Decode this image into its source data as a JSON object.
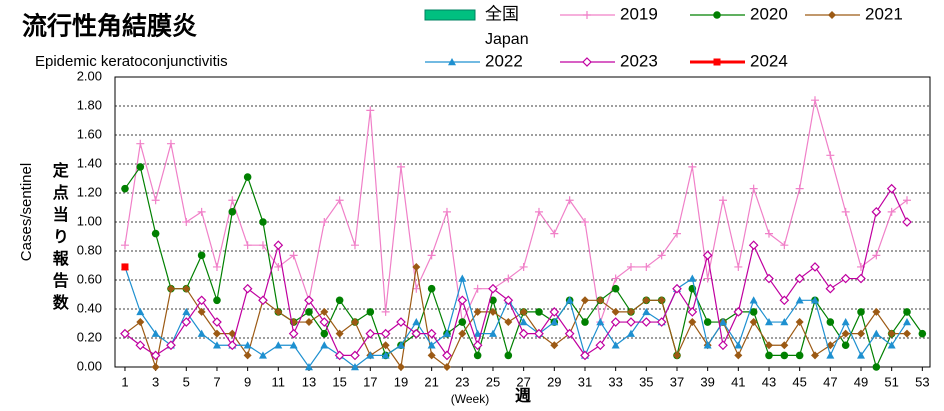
{
  "chart_data": {
    "type": "line",
    "title": "流行性角結膜炎",
    "subtitle": "Epidemic keratoconjunctivitis",
    "ylabel": "Cases/sentinel",
    "ylabel_ja": "定点当り報告数",
    "xlabel": "(Week)",
    "xlabel_ja": "週",
    "x": [
      1,
      2,
      3,
      4,
      5,
      6,
      7,
      8,
      9,
      10,
      11,
      12,
      13,
      14,
      15,
      16,
      17,
      18,
      19,
      20,
      21,
      22,
      23,
      24,
      25,
      26,
      27,
      28,
      29,
      30,
      31,
      32,
      33,
      34,
      35,
      36,
      37,
      38,
      39,
      40,
      41,
      42,
      43,
      44,
      45,
      46,
      47,
      48,
      49,
      50,
      51,
      52,
      53
    ],
    "xlim": [
      0.35,
      53.5
    ],
    "xticks": [
      1,
      3,
      5,
      7,
      9,
      11,
      13,
      15,
      17,
      19,
      21,
      23,
      25,
      27,
      29,
      31,
      33,
      35,
      37,
      39,
      41,
      43,
      45,
      47,
      49,
      51,
      53
    ],
    "ylim": [
      0,
      2
    ],
    "yticks": [
      {
        "value": 0,
        "label": "0.00"
      },
      {
        "value": 0.2,
        "label": "0.20"
      },
      {
        "value": 0.4,
        "label": "0.40"
      },
      {
        "value": 0.6,
        "label": "0.60"
      },
      {
        "value": 0.8,
        "label": "0.80"
      },
      {
        "value": 1.0,
        "label": "1.00"
      },
      {
        "value": 1.2,
        "label": "1.20"
      },
      {
        "value": 1.4,
        "label": "1.40"
      },
      {
        "value": 1.6,
        "label": "1.60"
      },
      {
        "value": 1.8,
        "label": "1.80"
      },
      {
        "value": 2.0,
        "label": "2.00"
      }
    ],
    "grid": true,
    "series": [
      {
        "name": "全国",
        "name_en": "Japan",
        "color": "#00c080",
        "marker": "rect",
        "values": [
          null,
          null,
          null,
          null,
          null,
          null,
          null,
          null,
          null,
          null,
          null,
          null,
          null,
          null,
          null,
          null,
          null,
          null,
          null,
          null,
          null,
          null,
          null,
          null,
          null,
          null,
          null,
          null,
          null,
          null,
          null,
          null,
          null,
          null,
          null,
          null,
          null,
          null,
          null,
          null,
          null,
          null,
          null,
          null,
          null,
          null,
          null,
          null,
          null,
          null,
          null,
          null,
          null
        ]
      },
      {
        "name": "2019",
        "color": "#f080c8",
        "marker": "plus",
        "values": [
          0.84,
          1.54,
          1.15,
          1.54,
          1.0,
          1.07,
          0.69,
          1.15,
          0.84,
          0.84,
          0.69,
          0.77,
          0.46,
          1.0,
          1.15,
          0.84,
          1.77,
          0.38,
          1.38,
          0.54,
          0.77,
          1.07,
          0.31,
          0.54,
          0.54,
          0.61,
          0.69,
          1.07,
          0.92,
          1.15,
          1.0,
          0.31,
          0.61,
          0.69,
          0.69,
          0.77,
          0.92,
          1.38,
          0.61,
          1.15,
          0.69,
          1.23,
          0.92,
          0.84,
          1.23,
          1.84,
          1.46,
          1.07,
          0.69,
          0.77,
          1.07,
          1.15,
          null
        ]
      },
      {
        "name": "2020",
        "color": "#008000",
        "marker": "circle",
        "values": [
          1.23,
          1.38,
          0.92,
          0.54,
          0.54,
          0.77,
          0.46,
          1.07,
          1.31,
          1.0,
          0.38,
          0.31,
          0.38,
          0.23,
          0.46,
          0.31,
          0.38,
          0.08,
          0.15,
          0.23,
          0.54,
          0.23,
          0.31,
          0.08,
          0.46,
          0.08,
          0.38,
          0.38,
          0.31,
          0.46,
          0.31,
          0.46,
          0.54,
          0.38,
          0.46,
          0.46,
          0.08,
          0.54,
          0.31,
          0.31,
          0.38,
          0.38,
          0.08,
          0.08,
          0.08,
          0.46,
          0.31,
          0.15,
          0.38,
          0.0,
          0.23,
          0.38,
          0.23
        ]
      },
      {
        "name": "2021",
        "color": "#9c5a14",
        "marker": "diamond",
        "values": [
          0.23,
          0.31,
          0.0,
          0.54,
          0.54,
          0.38,
          0.23,
          0.23,
          0.08,
          0.46,
          0.38,
          0.31,
          0.31,
          0.38,
          0.23,
          0.31,
          0.08,
          0.15,
          0.0,
          0.69,
          0.08,
          0.0,
          0.23,
          0.38,
          0.38,
          0.31,
          0.38,
          0.23,
          0.15,
          0.23,
          0.46,
          0.46,
          0.38,
          0.38,
          0.46,
          0.46,
          0.08,
          0.31,
          0.15,
          0.31,
          0.08,
          0.31,
          0.15,
          0.15,
          0.31,
          0.08,
          0.15,
          0.23,
          0.23,
          0.38,
          0.23,
          0.23,
          null
        ]
      },
      {
        "name": "2022",
        "color": "#1e90d0",
        "marker": "triangle",
        "values": [
          0.69,
          0.38,
          0.23,
          0.15,
          0.38,
          0.23,
          0.15,
          0.15,
          0.15,
          0.08,
          0.15,
          0.15,
          0.0,
          0.15,
          0.08,
          0.0,
          0.08,
          0.08,
          0.15,
          0.31,
          0.15,
          0.23,
          0.61,
          0.23,
          0.23,
          0.46,
          0.31,
          0.23,
          0.31,
          0.46,
          0.08,
          0.31,
          0.15,
          0.23,
          0.38,
          0.31,
          0.54,
          0.61,
          0.15,
          0.31,
          0.15,
          0.46,
          0.31,
          0.31,
          0.46,
          0.46,
          0.08,
          0.31,
          0.08,
          0.23,
          0.15,
          0.31,
          null
        ]
      },
      {
        "name": "2023",
        "color": "#c000a0",
        "marker": "odiamond",
        "values": [
          0.23,
          0.15,
          0.08,
          0.15,
          0.31,
          0.46,
          0.31,
          0.15,
          0.54,
          0.46,
          0.84,
          0.23,
          0.46,
          0.31,
          0.08,
          0.08,
          0.23,
          0.23,
          0.31,
          0.23,
          0.23,
          0.08,
          0.46,
          0.15,
          0.54,
          0.46,
          0.23,
          0.23,
          0.38,
          0.23,
          0.08,
          0.15,
          0.31,
          0.31,
          0.31,
          0.31,
          0.54,
          0.38,
          0.77,
          0.15,
          0.38,
          0.84,
          0.61,
          0.46,
          0.61,
          0.69,
          0.54,
          0.61,
          0.61,
          1.07,
          1.23,
          1.0,
          null
        ]
      },
      {
        "name": "2024",
        "color": "#ff0000",
        "marker": "square",
        "values": [
          0.69,
          null,
          null,
          null,
          null,
          null,
          null,
          null,
          null,
          null,
          null,
          null,
          null,
          null,
          null,
          null,
          null,
          null,
          null,
          null,
          null,
          null,
          null,
          null,
          null,
          null,
          null,
          null,
          null,
          null,
          null,
          null,
          null,
          null,
          null,
          null,
          null,
          null,
          null,
          null,
          null,
          null,
          null,
          null,
          null,
          null,
          null,
          null,
          null,
          null,
          null,
          null,
          null
        ]
      }
    ]
  }
}
